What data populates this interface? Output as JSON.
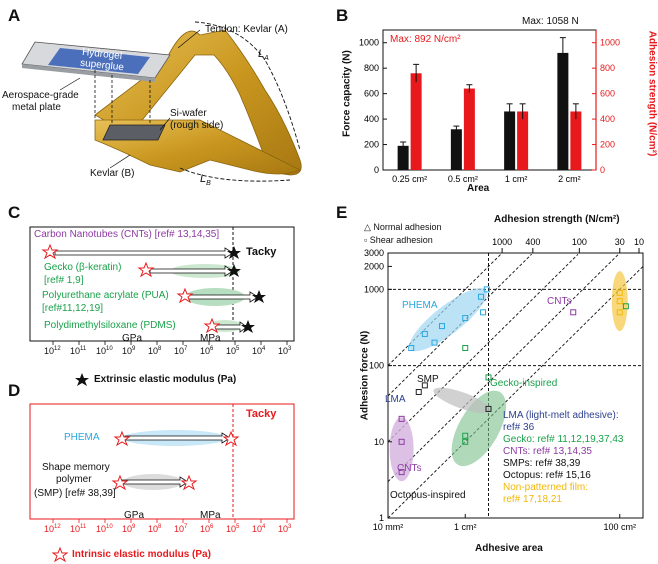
{
  "panels": {
    "a": "A",
    "b": "B",
    "c": "C",
    "d": "D",
    "e": "E"
  },
  "panelA": {
    "tendon": "Tendon: Kevlar (A)",
    "hydrogel": "Hydrogel",
    "superglue": "superglue",
    "plate1": "Aerospace-grade",
    "plate2": "metal plate",
    "wafer1": "Si-wafer",
    "wafer2": "(rough side)",
    "kevlarB": "Kevlar (B)",
    "LA": "L",
    "LAsub": "A",
    "LB": "L",
    "LBsub": "B"
  },
  "chart_data": [
    {
      "type": "bar",
      "title": "",
      "categories": [
        "0.25 cm²",
        "0.5 cm²",
        "1 cm²",
        "2 cm²"
      ],
      "xlabel": "Area",
      "ylabel": "Force capacity (N)",
      "ylabel_right": "Adhesion strength (N/cm²)",
      "ylim": [
        0,
        1100
      ],
      "ylim_right": [
        0,
        1100
      ],
      "yticks": [
        "0",
        "200",
        "400",
        "600",
        "800",
        "1000"
      ],
      "series": [
        {
          "name": "Force capacity",
          "color": "#111111",
          "values": [
            190,
            320,
            460,
            920
          ],
          "errors": [
            30,
            25,
            60,
            120
          ]
        },
        {
          "name": "Adhesion strength",
          "color": "#e8191c",
          "values": [
            760,
            640,
            460,
            460
          ],
          "errors": [
            70,
            30,
            60,
            60
          ]
        }
      ],
      "annotations": {
        "maxForce": "Max: 1058 N",
        "maxAdhesion": "Max: 892 N/cm²"
      }
    },
    {
      "type": "scatter",
      "xlabel": "Adhesive area",
      "ylabel": "Adhesion force (N)",
      "top_axis_label": "Adhesion strength (N/cm²)",
      "xtick_labels": [
        "10 mm²",
        "1 cm²",
        "100 cm²"
      ],
      "ytick_labels": [
        "1",
        "10",
        "100",
        "1000",
        "2000",
        "3000"
      ],
      "top_tick_labels": [
        "1000",
        "400",
        "100",
        "30",
        "10"
      ],
      "legend": {
        "normal": "Normal adhesion",
        "shear": "Shear adhesion"
      },
      "groups": {
        "phema": "PHEMA",
        "cnt": "CNTs",
        "cnt2": "CNTs",
        "smp": "SMP",
        "lma": "LMA",
        "gecko": "Gecko-inspired",
        "octopus": "Octopus-inspired"
      },
      "refs": [
        {
          "text": "LMA (light-melt adhesive):",
          "color": "#2d3f8f"
        },
        {
          "text": "ref# 36",
          "color": "#2d3f8f"
        },
        {
          "text": "Gecko: ref# 11,12,19,37,43",
          "color": "#1aa14a"
        },
        {
          "text": "CNTs: ref# 13,14,35",
          "color": "#8e3aa3"
        },
        {
          "text": "SMPs: ref# 38,39",
          "color": "#111111"
        },
        {
          "text": "Octopus: ref# 15,16",
          "color": "#111111"
        },
        {
          "text": "Non-patterned film:",
          "color": "#f2b705"
        },
        {
          "text": "ref# 17,18,21",
          "color": "#f2b705"
        }
      ],
      "series": [
        {
          "name": "PHEMA",
          "color": "#29a8e0",
          "points": [
            [
              0.4,
              200
            ],
            [
              0.3,
              260
            ],
            [
              0.5,
              330
            ],
            [
              1.0,
              420
            ],
            [
              1.7,
              500
            ],
            [
              1.6,
              800
            ],
            [
              1.9,
              1000
            ],
            [
              0.2,
              170
            ]
          ]
        },
        {
          "name": "Gecko",
          "color": "#1aa14a",
          "points": [
            [
              1.0,
              10
            ],
            [
              1.0,
              12
            ],
            [
              1.0,
              170
            ],
            [
              2.0,
              70
            ],
            [
              120,
              600
            ]
          ]
        },
        {
          "name": "CNTs",
          "color": "#8e3aa3",
          "points": [
            [
              0.15,
              20
            ],
            [
              0.15,
              10
            ],
            [
              0.15,
              4
            ],
            [
              25,
              500
            ]
          ]
        },
        {
          "name": "SMP",
          "color": "#222222",
          "points": [
            [
              0.3,
              55
            ],
            [
              0.25,
              45
            ],
            [
              2.0,
              27
            ]
          ]
        },
        {
          "name": "Non-patterned",
          "color": "#f2b705",
          "points": [
            [
              100,
              900
            ],
            [
              100,
              700
            ],
            [
              100,
              500
            ]
          ]
        }
      ]
    }
  ],
  "panelC": {
    "cnt": "Carbon Nanotubes (CNTs) [ref# 13,14,35]",
    "gecko1": "Gecko (β-keratin)",
    "gecko2": "[ref# 1,9]",
    "pua1": "Polyurethane acrylate (PUA)",
    "pua2": "[ref#11,12,19]",
    "pdms": "Polydimethylsiloxane (PDMS)",
    "tacky": "Tacky",
    "gpa": "GPa",
    "mpa": "MPa",
    "axis": "Extrinsic elastic modulus (Pa)",
    "ticks": [
      "12",
      "11",
      "10",
      "9",
      "8",
      "7",
      "6",
      "5",
      "4",
      "3"
    ]
  },
  "panelD": {
    "tacky": "Tacky",
    "phema": "PHEMA",
    "smp1": "Shape memory",
    "smp2": "polymer",
    "smp3": "(SMP) [ref# 38,39]",
    "gpa": "GPa",
    "mpa": "MPa",
    "axis": "Intrinsic elastic modulus (Pa)",
    "ticks": [
      "12",
      "11",
      "10",
      "9",
      "8",
      "7",
      "6",
      "5",
      "4",
      "3"
    ]
  },
  "colors": {
    "red": "#e8191c",
    "black": "#111111",
    "cnt": "#8e3aa3",
    "gecko": "#1aa14a",
    "phema": "#29a8e0",
    "gold": "#c9971f"
  }
}
